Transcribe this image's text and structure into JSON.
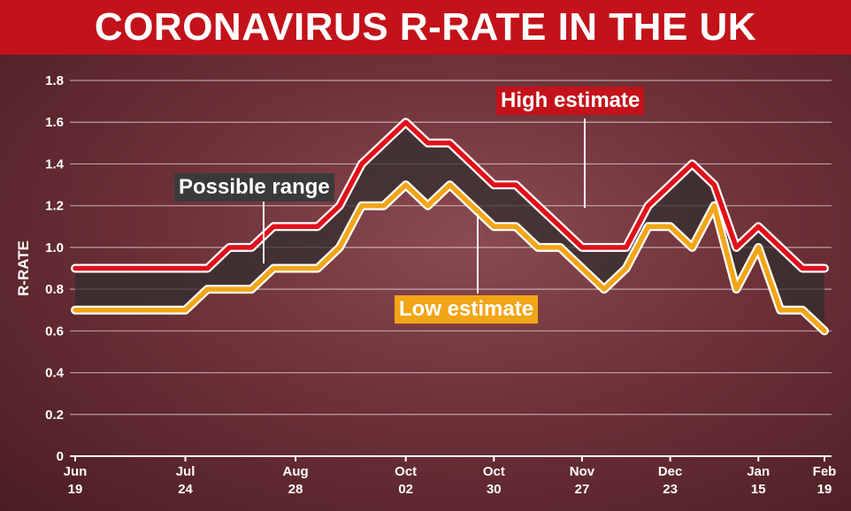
{
  "title": "CORONAVIRUS R-RATE IN THE UK",
  "chart_data": {
    "type": "line",
    "ylabel": "R-RATE",
    "ylim": [
      0,
      1.8
    ],
    "yticks": [
      0,
      0.2,
      0.4,
      0.6,
      0.8,
      1.0,
      1.2,
      1.4,
      1.6,
      1.8
    ],
    "ytick_labels": [
      "0",
      "0.2",
      "0.4",
      "0.6",
      "0.8",
      "1.0",
      "1.2",
      "1.4",
      "1.6",
      "1.8"
    ],
    "xticks": [
      {
        "index": 0,
        "line1": "Jun",
        "line2": "19"
      },
      {
        "index": 5,
        "line1": "Jul",
        "line2": "24"
      },
      {
        "index": 10,
        "line1": "Aug",
        "line2": "28"
      },
      {
        "index": 15,
        "line1": "Oct",
        "line2": "02"
      },
      {
        "index": 19,
        "line1": "Oct",
        "line2": "30"
      },
      {
        "index": 23,
        "line1": "Nov",
        "line2": "27"
      },
      {
        "index": 27,
        "line1": "Dec",
        "line2": "23"
      },
      {
        "index": 31,
        "line1": "Jan",
        "line2": "15"
      },
      {
        "index": 34,
        "line1": "Feb",
        "line2": "19"
      }
    ],
    "series": [
      {
        "name": "High estimate",
        "color": "#e0101a",
        "values": [
          0.9,
          0.9,
          0.9,
          0.9,
          0.9,
          0.9,
          0.9,
          1.0,
          1.0,
          1.1,
          1.1,
          1.1,
          1.2,
          1.4,
          1.5,
          1.6,
          1.5,
          1.5,
          1.4,
          1.3,
          1.3,
          1.2,
          1.1,
          1.0,
          1.0,
          1.0,
          1.2,
          1.3,
          1.4,
          1.3,
          1.0,
          1.1,
          1.0,
          0.9,
          0.9
        ]
      },
      {
        "name": "Low estimate",
        "color": "#f2a516",
        "values": [
          0.7,
          0.7,
          0.7,
          0.7,
          0.7,
          0.7,
          0.8,
          0.8,
          0.8,
          0.9,
          0.9,
          0.9,
          1.0,
          1.2,
          1.2,
          1.3,
          1.2,
          1.3,
          1.2,
          1.1,
          1.1,
          1.0,
          1.0,
          0.9,
          0.8,
          0.9,
          1.1,
          1.1,
          1.0,
          1.2,
          0.8,
          1.0,
          0.7,
          0.7,
          0.6
        ]
      }
    ],
    "band": {
      "name": "Possible range",
      "color": "#2e2e2e"
    },
    "annotations": {
      "high": "High estimate",
      "low": "Low estimate",
      "range": "Possible range"
    },
    "grid": true,
    "background_colors": {
      "title_bar": "#c3121a",
      "plot": "#6e3138"
    }
  }
}
